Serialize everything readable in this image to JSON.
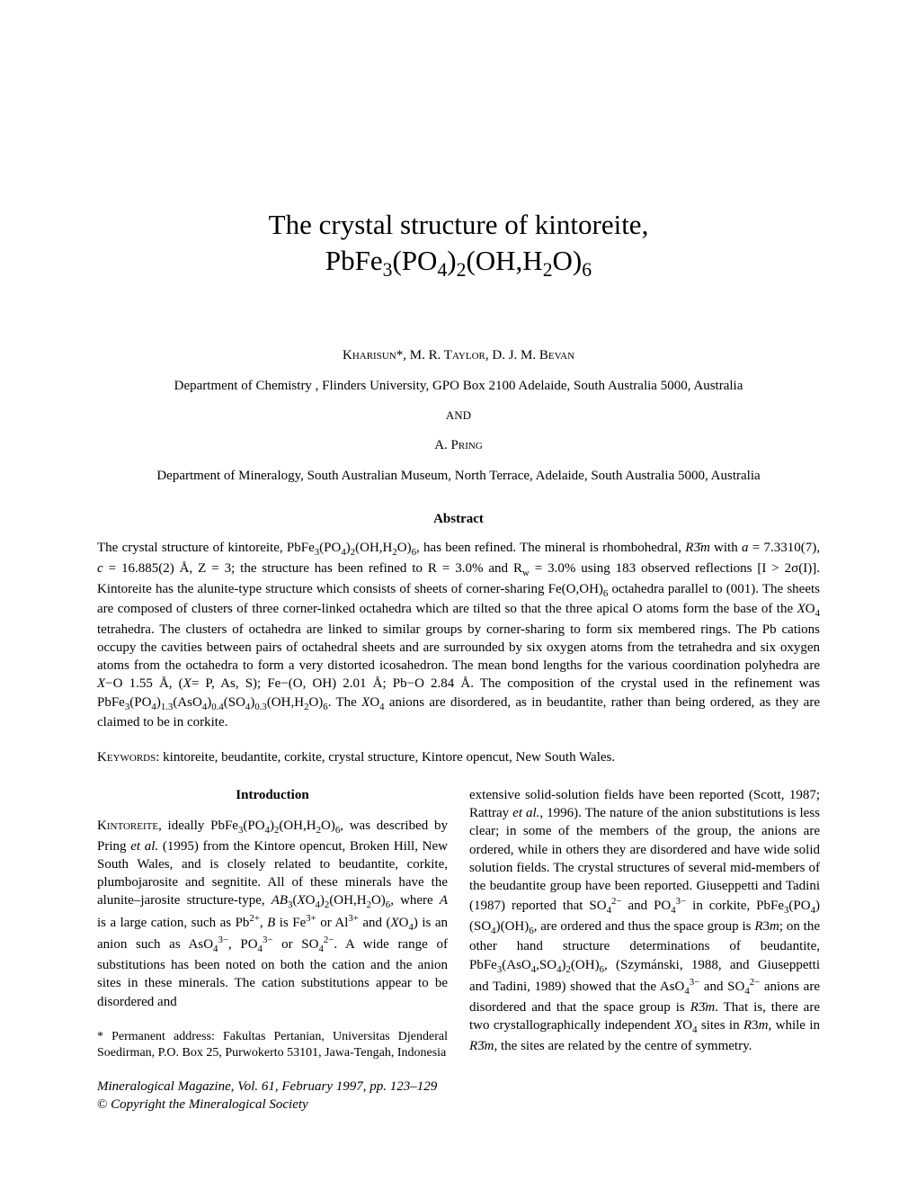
{
  "title_line1": "The crystal structure of kintoreite,",
  "title_line2_html": "PbFe<sub>3</sub>(PO<sub>4</sub>)<sub>2</sub>(OH,H<sub>2</sub>O)<sub>6</sub>",
  "authors1_html": "K<span style=\"font-variant:small-caps\">harisun</span>*, M. R. T<span style=\"font-variant:small-caps\">aylor</span>, D. J. M. B<span style=\"font-variant:small-caps\">evan</span>",
  "affiliation1": "Department of Chemistry , Flinders University, GPO Box 2100 Adelaide, South Australia 5000, Australia",
  "and_sep": "AND",
  "authors2_html": "A. P<span style=\"font-variant:small-caps\">ring</span>",
  "affiliation2": "Department of Mineralogy, South Australian Museum, North Terrace, Adelaide, South Australia 5000, Australia",
  "abstract_heading": "Abstract",
  "abstract_html": "The crystal structure of kintoreite, PbFe<sub>3</sub>(PO<sub>4</sub>)<sub>2</sub>(OH,H<sub>2</sub>O)<sub>6</sub>, has been refined. The mineral is rhombohedral, <i>R</i>3̄<i>m</i> with <i>a</i> = 7.3310(7), <i>c</i> = 16.885(2) Å, Z = 3; the structure has been refined to R = 3.0% and R<sub>w</sub> = 3.0% using 183 observed reflections [I &gt; 2σ(I)]. Kintoreite has the alunite-type structure which consists of sheets of corner-sharing Fe(O,OH)<sub>6</sub> octahedra parallel to (001). The sheets are composed of clusters of three corner-linked octahedra which are tilted so that the three apical O atoms form the base of the <i>X</i>O<sub>4</sub> tetrahedra. The clusters of octahedra are linked to similar groups by corner-sharing to form six membered rings. The Pb cations occupy the cavities between pairs of octahedral sheets and are surrounded by six oxygen atoms from the tetrahedra and six oxygen atoms from the octahedra to form a very distorted icosahedron. The mean bond lengths for the various coordination polyhedra are <i>X</i>−O 1.55 Å, (<i>X</i>= P, As, S); Fe−(O, OH) 2.01 Å; Pb−O 2.84 Å. The composition of the crystal used in the refinement was PbFe<sub>3</sub>(PO<sub>4</sub>)<sub>1.3</sub>(AsO<sub>4</sub>)<sub>0.4</sub>(SO<sub>4</sub>)<sub>0.3</sub>(OH,H<sub>2</sub>O)<sub>6</sub>. The <i>X</i>O<sub>4</sub> anions are disordered, as in beudantite, rather than being ordered, as they are claimed to be in corkite.",
  "keywords_html": "K<span style=\"font-variant:small-caps\">eywords</span>: kintoreite, beudantite, corkite, crystal structure, Kintore opencut, New South Wales.",
  "intro_heading": "Introduction",
  "col1_html": "K<span style=\"font-variant:small-caps\">intoreite</span>, ideally PbFe<sub>3</sub>(PO<sub>4</sub>)<sub>2</sub>(OH,H<sub>2</sub>O)<sub>6</sub>, was described by Pring <i>et al.</i> (1995) from the Kintore opencut, Broken Hill, New South Wales, and is closely related to beudantite, corkite, plumbojarosite and segnitite. All of these minerals have the alunite–jarosite structure-type, <i>AB</i><sub>3</sub>(<i>X</i>O<sub>4</sub>)<sub>2</sub>(OH,H<sub>2</sub>O)<sub>6</sub>, where <i>A</i> is a large cation, such as Pb<sup>2+</sup>, <i>B</i> is Fe<sup>3+</sup> or Al<sup>3+</sup> and (<i>X</i>O<sub>4</sub>) is an anion such as AsO<sub>4</sub><sup>3−</sup>, PO<sub>4</sub><sup>3−</sup> or SO<sub>4</sub><sup>2−</sup>. A wide range of substitutions has been noted on both the cation and the anion sites in these minerals. The cation substitutions appear to be disordered and",
  "col2_html": "extensive solid-solution fields have been reported (Scott, 1987; Rattray <i>et al.</i>, 1996). The nature of the anion substitutions is less clear; in some of the members of the group, the anions are ordered, while in others they are disordered and have wide solid solution fields. The crystal structures of several mid-members of the beudantite group have been reported. Giuseppetti and Tadini (1987) reported that SO<sub>4</sub><sup>2−</sup> and PO<sub>4</sub><sup>3−</sup> in corkite, PbFe<sub>3</sub>(PO<sub>4</sub>)(SO<sub>4</sub>)(OH)<sub>6</sub>, are ordered and thus the space group is <i>R</i>3<i>m</i>; on the other hand structure determinations of beudantite, PbFe<sub>3</sub>(AsO<sub>4</sub>,SO<sub>4</sub>)<sub>2</sub>(OH)<sub>6</sub>, (Szymánski, 1988, and Giuseppetti and Tadini, 1989) showed that the AsO<sub>4</sub><sup>3−</sup> and SO<sub>4</sub><sup>2−</sup> anions are disordered and that the space group is <i>R</i>3̄<i>m</i>. That is, there are two crystallographically independent <i>X</i>O<sub>4</sub> sites in <i>R</i>3<i>m</i>, while in <i>R</i>3̄<i>m</i>, the sites are related by the centre of symmetry.",
  "footnote": "* Permanent address: Fakultas Pertanian, Universitas Djenderal Soedirman, P.O. Box 25, Purwokerto 53101, Jawa-Tengah, Indonesia",
  "journal_html": "<i>Mineralogical Magazine, Vol. 61, February 1997, pp. 123–129</i>",
  "copyright_html": "© <i>Copyright the Mineralogical Society</i>"
}
